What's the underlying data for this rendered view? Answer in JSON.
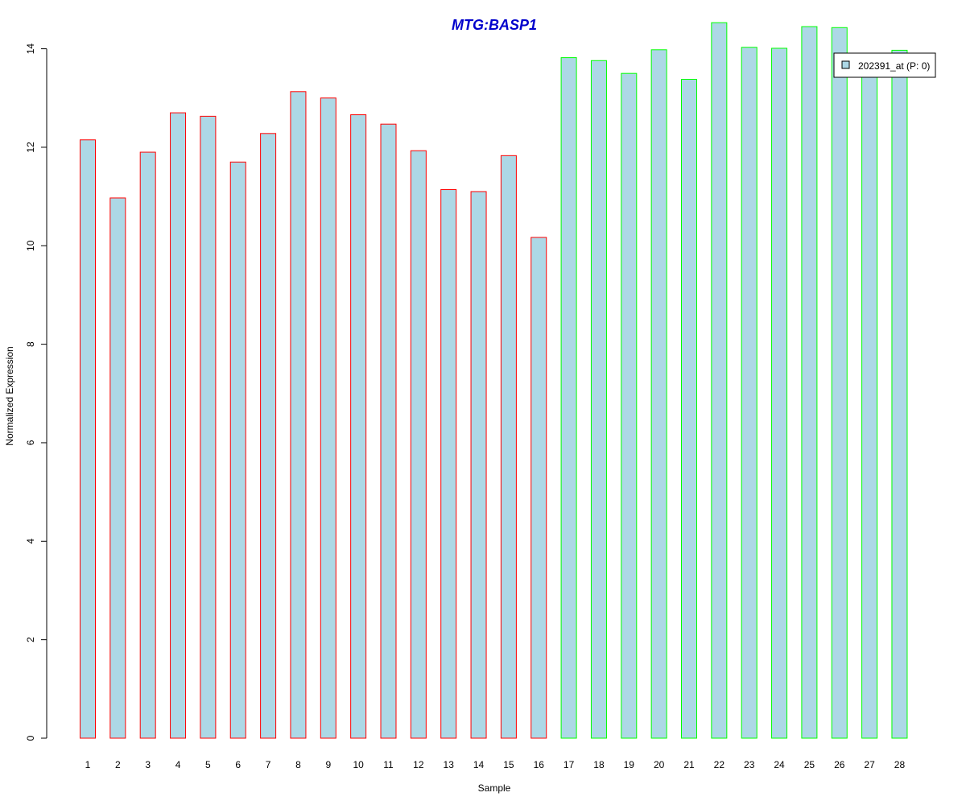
{
  "chart_data": {
    "type": "bar",
    "title": "MTG:BASP1",
    "title_color": "#0000CC",
    "xlabel": "Sample",
    "ylabel": "Normalized Expression",
    "ylim": [
      0,
      14.5
    ],
    "yticks": [
      0,
      2,
      4,
      6,
      8,
      10,
      12,
      14
    ],
    "grid": false,
    "legend": {
      "position": "top-right",
      "label": "202391_at (P: 0)"
    },
    "bar_fill": "#ADD8E6",
    "group_colors": {
      "group1": "#FF0000",
      "group2": "#00FF00"
    },
    "categories": [
      "1",
      "2",
      "3",
      "4",
      "5",
      "6",
      "7",
      "8",
      "9",
      "10",
      "11",
      "12",
      "13",
      "14",
      "15",
      "16",
      "17",
      "18",
      "19",
      "20",
      "21",
      "22",
      "23",
      "24",
      "25",
      "26",
      "27",
      "28"
    ],
    "values": [
      12.15,
      10.97,
      11.9,
      12.7,
      12.63,
      11.7,
      12.28,
      13.13,
      13.0,
      12.66,
      12.47,
      11.93,
      11.14,
      11.1,
      11.83,
      10.17,
      13.82,
      13.76,
      13.5,
      13.98,
      13.38,
      14.53,
      14.03,
      14.01,
      14.45,
      14.43,
      13.61,
      13.97
    ],
    "bar_group": [
      "group1",
      "group1",
      "group1",
      "group1",
      "group1",
      "group1",
      "group1",
      "group1",
      "group1",
      "group1",
      "group1",
      "group1",
      "group1",
      "group1",
      "group1",
      "group1",
      "group2",
      "group2",
      "group2",
      "group2",
      "group2",
      "group2",
      "group2",
      "group2",
      "group2",
      "group2",
      "group2",
      "group2"
    ]
  }
}
